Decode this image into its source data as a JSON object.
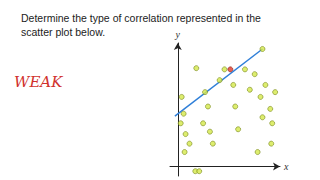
{
  "chart_data": {
    "type": "scatter",
    "title": "Determine the type of correlation represented in the scatter plot below.",
    "annotation": {
      "text": "WEAK",
      "color": "#d0312d"
    },
    "x_label": "x",
    "y_label": "y",
    "xlim": [
      -0.8,
      10.5
    ],
    "ylim": [
      -0.8,
      10.3
    ],
    "tick_labels": false,
    "grid": false,
    "marker": "circle",
    "color": "#d4e84a",
    "x": [
      0.4,
      0.6,
      0.3,
      0.8,
      1.2,
      0.7,
      1.8,
      2.2,
      1.9,
      2.8,
      3.1,
      2.6,
      3.6,
      3.3,
      4.3,
      4.8,
      5.7,
      5.9,
      6.2,
      6.9,
      7.4,
      7.9,
      8.5,
      8.7,
      8.2,
      9.0,
      9.5,
      9.7,
      9.6,
      10.0,
      8.7
    ],
    "y": [
      5.8,
      4.4,
      3.6,
      2.7,
      1.9,
      1.2,
      -0.4,
      -0.4,
      8.2,
      6.2,
      5.0,
      3.6,
      1.9,
      2.9,
      7.2,
      8.1,
      6.8,
      5.0,
      3.1,
      8.1,
      6.4,
      7.7,
      5.8,
      4.1,
      1.2,
      6.8,
      4.8,
      3.6,
      1.9,
      6.2,
      9.8
    ],
    "highlight": {
      "x": [
        5.4
      ],
      "y": [
        8.1
      ],
      "color": "#e03a2a"
    },
    "trend_line": {
      "x": [
        -0.3,
        8.7
      ],
      "y": [
        4.2,
        9.8
      ],
      "color": "#2f7fd8",
      "line_style": "solid"
    }
  }
}
